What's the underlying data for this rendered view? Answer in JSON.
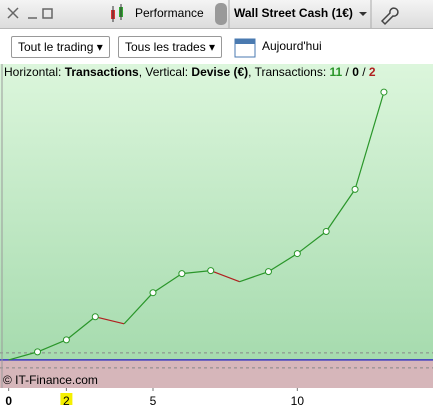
{
  "toolbar": {
    "title": "Performance",
    "instrument": "Wall Street Cash (1€)"
  },
  "filters": {
    "scope": "Tout le trading",
    "trades": "Tous les trades",
    "date": "Aujourd'hui"
  },
  "header": {
    "h_label": "Horizontal: ",
    "h_value": "Transactions",
    "v_label": ", Vertical: ",
    "v_value": "Devise (€)",
    "t_label": ", Transactions: ",
    "wins": 11,
    "sep1": " / ",
    "neutral": 0,
    "sep2": " / ",
    "losses": 2
  },
  "footer": "© IT-Finance.com",
  "chart_data": {
    "type": "line",
    "x": [
      0,
      1,
      2,
      3,
      4,
      5,
      6,
      7,
      8,
      9,
      10,
      11,
      12,
      13
    ],
    "series": [
      {
        "color": "#2a962a",
        "loss_color": "#b02020",
        "values": [
          0,
          8,
          20,
          43,
          36,
          67,
          86,
          89,
          78,
          88,
          106,
          128,
          170,
          267
        ]
      }
    ],
    "xlim": [
      -0.3,
      14.7
    ],
    "ylim": [
      -28,
      295
    ],
    "xticks": [
      0,
      {
        "value": 2,
        "label": "2"
      },
      5,
      10
    ],
    "highlight_tick": 2
  }
}
